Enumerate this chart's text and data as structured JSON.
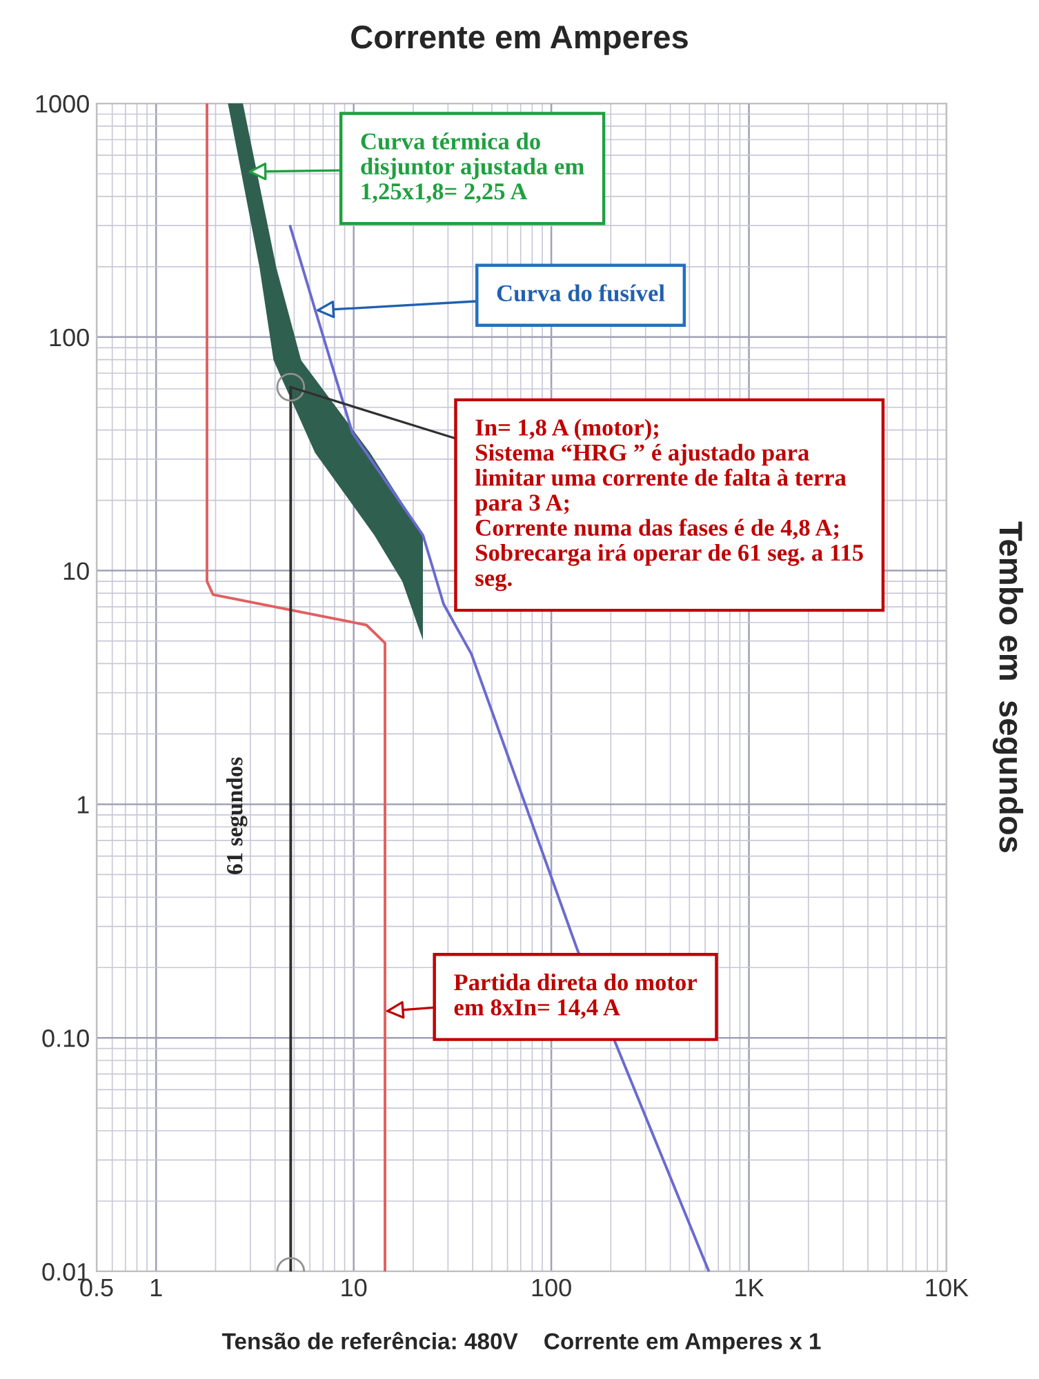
{
  "chart_data": {
    "type": "line",
    "title": "Corrente em Amperes",
    "xlabel": "Tensão de referência: 480V    Corrente em Amperes x 1",
    "ylabel": "Tembo em  segundos",
    "log": "xy",
    "grid": true,
    "legend": false,
    "xlim": [
      0.5,
      10000
    ],
    "xticks": [
      0.5,
      1,
      10,
      100,
      {
        "value": 1000,
        "label": "1K"
      },
      {
        "value": 10000,
        "label": "10K"
      }
    ],
    "ylim": [
      0.01,
      1000
    ],
    "yticks": [
      0.01,
      {
        "value": 0.1,
        "label": "0.10"
      },
      1,
      10,
      100,
      1000
    ],
    "series": [
      {
        "color": "#e06060",
        "x": [
          1.81,
          1.81,
          1.94,
          11.6,
          14.4,
          14.4
        ],
        "values": [
          1000,
          9.0,
          7.9,
          5.85,
          4.9,
          0.01
        ]
      },
      {
        "color": "#6a6ad0",
        "x": [
          4.77,
          6.36,
          9.84,
          22.4,
          28.5,
          39.4,
          135,
          627
        ],
        "values": [
          298,
          132,
          39,
          14.2,
          7.2,
          4.4,
          0.24,
          0.01
        ]
      },
      {
        "type": "area",
        "color": "#2f5f4f",
        "x": [
          2.31,
          3.34,
          3.93,
          6.37,
          12.7,
          17.6,
          22.4,
          22.4,
          22.4,
          12.1,
          5.42,
          4.06,
          2.75
        ],
        "values": [
          1000,
          198,
          79.5,
          32,
          14.2,
          9.0,
          5.04,
          9.0,
          14.2,
          32,
          79.5,
          198,
          1000
        ]
      },
      {
        "color": "#303030",
        "marker": "circle",
        "x": [
          4.8,
          4.8
        ],
        "values": [
          0.01,
          61
        ]
      }
    ],
    "annotations": [
      {
        "text": "Curva térmica do\ndisjuntor ajustada em\n1,25x1,8= 2,25 A",
        "x": 2.9,
        "y": 510
      },
      {
        "text": "Curva do fusível",
        "x": 6.4,
        "y": 130
      },
      {
        "text": "In= 1,8 A (motor);\nSistema “HRG ” é ajustado para\nlimitar uma corrente de falta à terra\npara 3 A;\nCorrente numa das fases é de 4,8 A;\nSobrecarga irá operar de 61 seg. a 115\nseg.",
        "x": 4.8,
        "y": 61
      },
      {
        "text": "Partida direta do motor\nem 8xIn= 14,4 A",
        "x": 14.4,
        "y": 0.13
      },
      "61 segundos"
    ]
  }
}
